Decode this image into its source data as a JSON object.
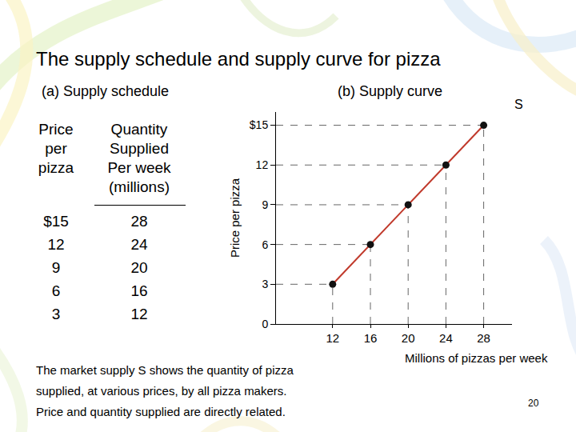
{
  "title": "The supply schedule and supply curve for pizza",
  "table_title": "(a) Supply schedule",
  "table": {
    "header": [
      [
        "Price",
        "per",
        "pizza"
      ],
      [
        "Quantity",
        "Supplied",
        "Per week",
        "(millions)"
      ]
    ],
    "rows": [
      [
        "$15",
        28
      ],
      [
        "12",
        24
      ],
      [
        "9",
        20
      ],
      [
        "6",
        16
      ],
      [
        "3",
        12
      ]
    ]
  },
  "caption": [
    "The market supply S shows the quantity of pizza",
    "supplied, at various prices, by all pizza makers.",
    "Price and quantity supplied are directly related."
  ],
  "page_number": "20",
  "chart_data": {
    "type": "line",
    "title": "(b) Supply curve",
    "x": [
      12,
      16,
      20,
      24,
      28
    ],
    "series": [
      {
        "name": "S",
        "color": "#c0392b",
        "values": [
          3,
          6,
          9,
          12,
          15
        ],
        "marker": "circle",
        "line_style": "solid"
      }
    ],
    "x_label": "Millions of pizzas per week",
    "y_label": "Price per pizza",
    "xlim": [
      6,
      31
    ],
    "xticks": [
      12,
      16,
      20,
      24,
      28
    ],
    "ylim": [
      0,
      16
    ],
    "yticks": [
      0,
      3,
      6,
      9,
      12,
      {
        "value": 15,
        "label": "$15"
      }
    ],
    "grid": false
  }
}
